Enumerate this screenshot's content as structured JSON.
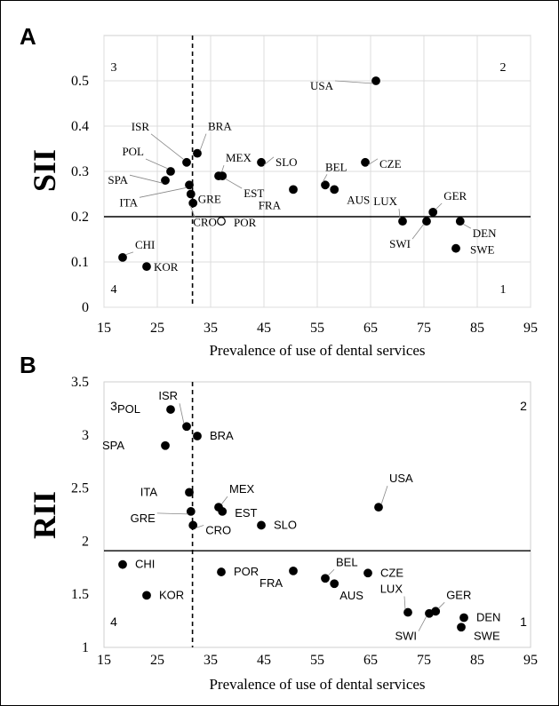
{
  "chart_data": [
    {
      "type": "scatter",
      "panel": "A",
      "xlabel": "Prevalence of use of dental services",
      "ylabel": "SII",
      "xlim": [
        15,
        95
      ],
      "ylim": [
        0,
        0.6
      ],
      "xticks": [
        15,
        25,
        35,
        45,
        55,
        65,
        75,
        85,
        95
      ],
      "yticks": [
        0,
        0.1,
        0.2,
        0.3,
        0.4,
        0.5
      ],
      "ytick_labels": [
        "0",
        "0.1",
        "0.2",
        "0.3",
        "0.4",
        "0.5"
      ],
      "grid": true,
      "reference_lines": {
        "vertical_dashed_x": 31.6,
        "horizontal_solid_y": 0.2
      },
      "quadrants": [
        "1",
        "2",
        "3",
        "4"
      ],
      "points": [
        {
          "label": "USA",
          "x": 66,
          "y": 0.5,
          "filled": true
        },
        {
          "label": "ISR",
          "x": 30.5,
          "y": 0.32,
          "filled": true
        },
        {
          "label": "BRA",
          "x": 32.5,
          "y": 0.34,
          "filled": true
        },
        {
          "label": "POL",
          "x": 27.5,
          "y": 0.3,
          "filled": true
        },
        {
          "label": "SPA",
          "x": 26.5,
          "y": 0.28,
          "filled": true
        },
        {
          "label": "MEX",
          "x": 36.5,
          "y": 0.29,
          "filled": true
        },
        {
          "label": "EST",
          "x": 37.2,
          "y": 0.29,
          "filled": true
        },
        {
          "label": "SLO",
          "x": 44.5,
          "y": 0.32,
          "filled": true
        },
        {
          "label": "BEL",
          "x": 56.5,
          "y": 0.27,
          "filled": true
        },
        {
          "label": "CZE",
          "x": 64,
          "y": 0.32,
          "filled": true
        },
        {
          "label": "FRA",
          "x": 50.5,
          "y": 0.26,
          "filled": true
        },
        {
          "label": "AUS",
          "x": 58.2,
          "y": 0.26,
          "filled": true
        },
        {
          "label": "ITA",
          "x": 31,
          "y": 0.27,
          "filled": true
        },
        {
          "label": "GRE",
          "x": 31.3,
          "y": 0.25,
          "filled": true
        },
        {
          "label": "CRO",
          "x": 31.7,
          "y": 0.23,
          "filled": true
        },
        {
          "label": "POR",
          "x": 37,
          "y": 0.19,
          "filled": false
        },
        {
          "label": "LUX",
          "x": 71,
          "y": 0.19,
          "filled": true
        },
        {
          "label": "GER",
          "x": 76.7,
          "y": 0.21,
          "filled": true
        },
        {
          "label": "SWI",
          "x": 75.5,
          "y": 0.19,
          "filled": true
        },
        {
          "label": "DEN",
          "x": 81.8,
          "y": 0.19,
          "filled": true
        },
        {
          "label": "SWE",
          "x": 81,
          "y": 0.13,
          "filled": true
        },
        {
          "label": "CHI",
          "x": 18.5,
          "y": 0.11,
          "filled": true
        },
        {
          "label": "KOR",
          "x": 23,
          "y": 0.09,
          "filled": true
        }
      ]
    },
    {
      "type": "scatter",
      "panel": "B",
      "xlabel": "Prevalence of use of dental services",
      "ylabel": "RII",
      "xlim": [
        15,
        95
      ],
      "ylim": [
        1,
        3.5
      ],
      "xticks": [
        15,
        25,
        35,
        45,
        55,
        65,
        75,
        85,
        95
      ],
      "yticks": [
        1,
        1.5,
        2,
        2.5,
        3,
        3.5
      ],
      "ytick_labels": [
        "1",
        "1.5",
        "2",
        "2.5",
        "3",
        "3.5"
      ],
      "grid": false,
      "reference_lines": {
        "vertical_dashed_x": 31.6,
        "horizontal_solid_y": 1.91
      },
      "quadrants": [
        "1",
        "2",
        "3",
        "4"
      ],
      "points": [
        {
          "label": "ISR",
          "x": 30.5,
          "y": 3.08,
          "filled": true
        },
        {
          "label": "POL",
          "x": 27.5,
          "y": 3.24,
          "filled": true
        },
        {
          "label": "BRA",
          "x": 32.5,
          "y": 2.99,
          "filled": true
        },
        {
          "label": "SPA",
          "x": 26.5,
          "y": 2.9,
          "filled": true
        },
        {
          "label": "MEX",
          "x": 36.5,
          "y": 2.32,
          "filled": true
        },
        {
          "label": "EST",
          "x": 37.2,
          "y": 2.28,
          "filled": true
        },
        {
          "label": "ITA",
          "x": 31,
          "y": 2.46,
          "filled": true
        },
        {
          "label": "USA",
          "x": 66.5,
          "y": 2.32,
          "filled": true
        },
        {
          "label": "GRE",
          "x": 31.3,
          "y": 2.28,
          "filled": true
        },
        {
          "label": "CRO",
          "x": 31.7,
          "y": 2.15,
          "filled": true
        },
        {
          "label": "SLO",
          "x": 44.5,
          "y": 2.15,
          "filled": true
        },
        {
          "label": "CHI",
          "x": 18.5,
          "y": 1.78,
          "filled": true
        },
        {
          "label": "POR",
          "x": 37,
          "y": 1.71,
          "filled": true
        },
        {
          "label": "FRA",
          "x": 50.5,
          "y": 1.72,
          "filled": true
        },
        {
          "label": "BEL",
          "x": 56.5,
          "y": 1.65,
          "filled": true
        },
        {
          "label": "AUS",
          "x": 58.2,
          "y": 1.6,
          "filled": true
        },
        {
          "label": "CZE",
          "x": 64.5,
          "y": 1.7,
          "filled": true
        },
        {
          "label": "KOR",
          "x": 23,
          "y": 1.49,
          "filled": true
        },
        {
          "label": "LUX",
          "x": 72,
          "y": 1.33,
          "filled": true
        },
        {
          "label": "GER",
          "x": 77.2,
          "y": 1.34,
          "filled": true
        },
        {
          "label": "SWI",
          "x": 76,
          "y": 1.32,
          "filled": true
        },
        {
          "label": "DEN",
          "x": 82.5,
          "y": 1.28,
          "filled": true
        },
        {
          "label": "SWE",
          "x": 82,
          "y": 1.19,
          "filled": true
        }
      ]
    }
  ]
}
